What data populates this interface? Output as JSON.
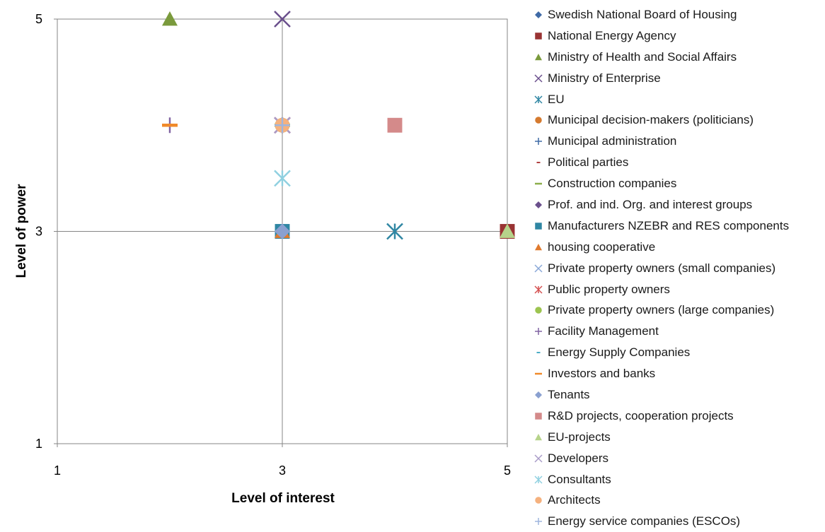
{
  "chart_data": {
    "type": "scatter",
    "xlabel": "Level of interest",
    "ylabel": "Level of power",
    "xlim": [
      1,
      5
    ],
    "ylim": [
      1,
      5
    ],
    "xticks": [
      "1",
      "3",
      "5"
    ],
    "yticks": [
      "1",
      "3",
      "5"
    ],
    "grid": "center crosshair lines at x=3 and y=3, plot border",
    "legend_position": "right",
    "series": [
      {
        "name": "Swedish National Board of Housing",
        "marker": "diamond",
        "color": "#3f6aa6",
        "points": [
          [
            3,
            3
          ]
        ]
      },
      {
        "name": "National Energy Agency",
        "marker": "square",
        "color": "#993333",
        "points": [
          [
            5,
            3
          ]
        ]
      },
      {
        "name": "Ministry of Health and Social Affairs",
        "marker": "triangle",
        "color": "#7a9a3c",
        "points": [
          [
            2,
            5
          ]
        ]
      },
      {
        "name": "Ministry of Enterprise",
        "marker": "x",
        "color": "#6a4f8c",
        "points": [
          [
            3,
            5
          ]
        ]
      },
      {
        "name": "EU",
        "marker": "asterisk",
        "color": "#2f86a3",
        "points": [
          [
            4,
            3
          ]
        ]
      },
      {
        "name": "Municipal decision-makers (politicians)",
        "marker": "circle",
        "color": "#d57a2f",
        "points": [
          [
            3,
            4
          ]
        ]
      },
      {
        "name": "Municipal administration",
        "marker": "plus",
        "color": "#3f6aa6",
        "points": [
          [
            3,
            4
          ]
        ]
      },
      {
        "name": "Political parties",
        "marker": "dash",
        "color": "#b04040",
        "points": [
          [
            3,
            4
          ]
        ]
      },
      {
        "name": "Construction companies",
        "marker": "long-dash",
        "color": "#8cae4a",
        "points": [
          [
            3,
            4
          ]
        ]
      },
      {
        "name": "Prof. and ind. Org. and interest groups",
        "marker": "diamond",
        "color": "#6a4f8c",
        "points": [
          [
            3,
            3
          ]
        ]
      },
      {
        "name": "Manufacturers NZEBR  and RES components",
        "marker": "square",
        "color": "#2f86a3",
        "points": [
          [
            3,
            3
          ]
        ]
      },
      {
        "name": "housing cooperative",
        "marker": "triangle",
        "color": "#e07a2e",
        "points": [
          [
            3,
            3
          ]
        ]
      },
      {
        "name": "Private property owners (small companies)",
        "marker": "x",
        "color": "#8aa8d8",
        "points": [
          [
            3,
            4
          ]
        ]
      },
      {
        "name": "Public property owners",
        "marker": "asterisk",
        "color": "#d45050",
        "points": [
          [
            3,
            4
          ]
        ]
      },
      {
        "name": "Private property owners (large companies)",
        "marker": "circle",
        "color": "#9cc44f",
        "points": [
          [
            3,
            4
          ]
        ]
      },
      {
        "name": "Facility Management",
        "marker": "plus",
        "color": "#8064a2",
        "points": [
          [
            2,
            4
          ]
        ]
      },
      {
        "name": "Energy Supply Companies",
        "marker": "dash",
        "color": "#4bacc6",
        "points": [
          [
            3,
            4
          ]
        ]
      },
      {
        "name": "Investors and banks",
        "marker": "long-dash",
        "color": "#f08a2a",
        "points": [
          [
            2,
            4
          ]
        ]
      },
      {
        "name": "Tenants",
        "marker": "diamond",
        "color": "#8aa0d0",
        "points": [
          [
            3,
            3
          ]
        ]
      },
      {
        "name": "R&D projects, cooperation projects",
        "marker": "square",
        "color": "#d48a8a",
        "points": [
          [
            4,
            4
          ]
        ]
      },
      {
        "name": "EU-projects",
        "marker": "triangle",
        "color": "#b6d38a",
        "points": [
          [
            5,
            3
          ]
        ]
      },
      {
        "name": "Developers",
        "marker": "x",
        "color": "#a99cc8",
        "points": [
          [
            3,
            4
          ]
        ]
      },
      {
        "name": "Consultants",
        "marker": "asterisk",
        "color": "#8fd0e0",
        "points": [
          [
            3,
            3.5
          ]
        ]
      },
      {
        "name": "Architects",
        "marker": "circle",
        "color": "#f5b17e",
        "points": [
          [
            3,
            4
          ]
        ]
      },
      {
        "name": "Energy service companies (ESCOs)",
        "marker": "plus",
        "color": "#9fb5dd",
        "points": [
          [
            3,
            4
          ]
        ]
      }
    ]
  }
}
